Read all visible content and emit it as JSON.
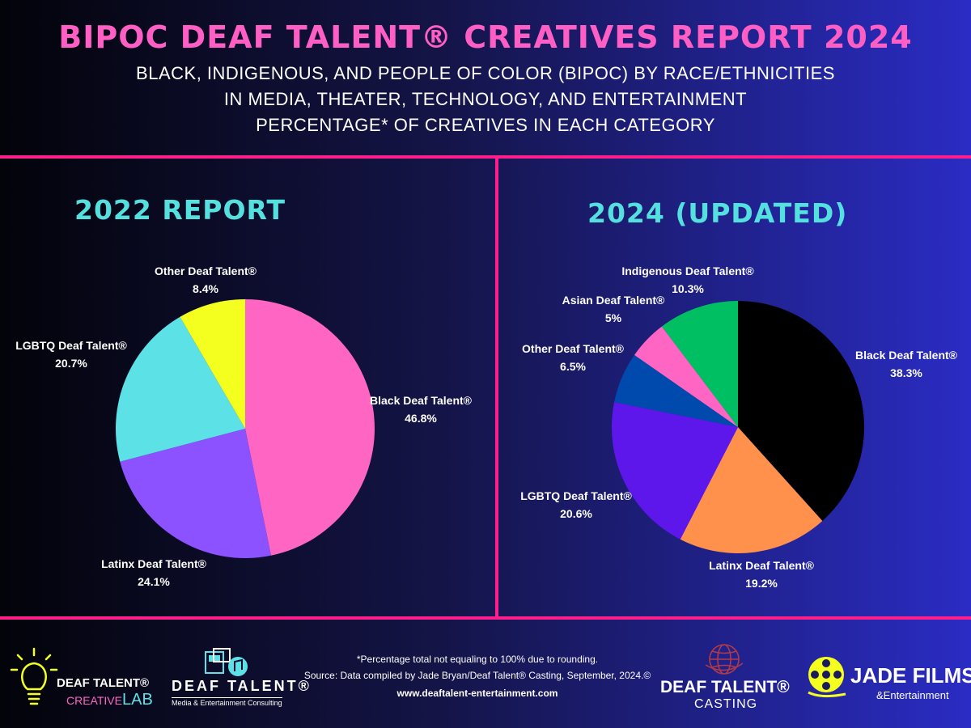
{
  "header": {
    "title": "BIPOC DEAF TALENT® CREATIVES REPORT 2024",
    "subtitle_1": "BLACK, INDIGENOUS, AND PEOPLE OF COLOR (BIPOC) BY RACE/ETHNICITIES",
    "subtitle_2": "IN MEDIA, THEATER, TECHNOLOGY, AND ENTERTAINMENT",
    "subtitle_3": "PERCENTAGE* OF CREATIVES IN EACH CATEGORY"
  },
  "chart_data": [
    {
      "type": "pie",
      "title": "2022 REPORT",
      "slices": [
        {
          "name": "Black Deaf Talent®",
          "value": 46.8,
          "label": "46.8%",
          "color": "#ff66c4"
        },
        {
          "name": "Latinx Deaf Talent®",
          "value": 24.1,
          "label": "24.1%",
          "color": "#8c52ff"
        },
        {
          "name": "LGBTQ Deaf Talent®",
          "value": 20.7,
          "label": "20.7%",
          "color": "#5ce1e6"
        },
        {
          "name": "Other Deaf Talent®",
          "value": 8.4,
          "label": "8.4%",
          "color": "#f5ff1f"
        }
      ]
    },
    {
      "type": "pie",
      "title": "2024 (UPDATED)",
      "slices": [
        {
          "name": "Black Deaf Talent®",
          "value": 38.3,
          "label": "38.3%",
          "color": "#000000"
        },
        {
          "name": "Latinx Deaf Talent®",
          "value": 19.2,
          "label": "19.2%",
          "color": "#ff914d"
        },
        {
          "name": "LGBTQ Deaf Talent®",
          "value": 20.6,
          "label": "20.6%",
          "color": "#5e17eb"
        },
        {
          "name": "Other Deaf Talent®",
          "value": 6.5,
          "label": "6.5%",
          "color": "#004aad"
        },
        {
          "name": "Asian Deaf Talent®",
          "value": 5,
          "label": "5%",
          "color": "#ff66c4"
        },
        {
          "name": "Indigenous Deaf Talent®",
          "value": 10.3,
          "label": "10.3%",
          "color": "#00bf63"
        }
      ]
    }
  ],
  "footer": {
    "note": "*Percentage total not equaling to 100% due to rounding.",
    "source": "Source: Data compiled by Jade Bryan/Deaf Talent® Casting, September, 2024.©",
    "website": "www.deaftalent-entertainment.com"
  },
  "logos": {
    "creative_lab_line1": "DEAF TALENT®",
    "creative_lab_line2a": "CREATIVE",
    "creative_lab_line2b": "LAB",
    "consulting_line1": "DEAF TALENT®",
    "consulting_line2": "Media & Entertainment Consulting",
    "casting_line1": "DEAF TALENT®",
    "casting_line2": "CASTING",
    "jade_line1": "JADE FILMS",
    "jade_line2": "&Entertainment",
    "icons": [
      "lightbulb-icon",
      "film-music-icon",
      "globe-film-icon",
      "film-reel-icon"
    ],
    "accent_cyan": "#5ce1e6",
    "accent_yellow": "#f5ff1f",
    "accent_pink": "#ff1f8c"
  }
}
